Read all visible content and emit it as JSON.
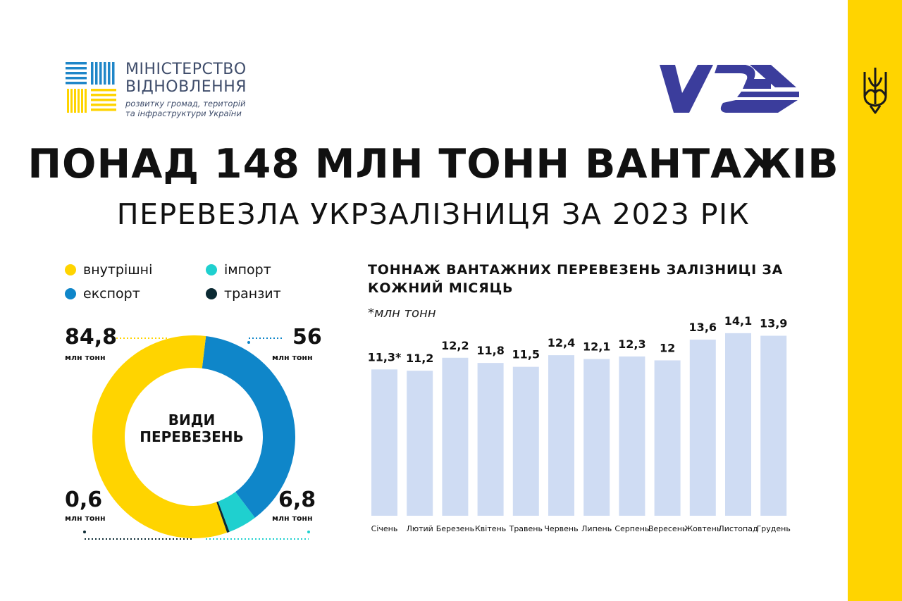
{
  "header": {
    "ministry_line1": "МІНІСТЕРСТВО",
    "ministry_line2": "ВІДНОВЛЕННЯ",
    "ministry_sub1": "розвитку громад, територій",
    "ministry_sub2": "та інфраструктури України",
    "title": "ПОНАД 148 МЛН ТОНН ВАНТАЖІВ",
    "subtitle": "ПЕРЕВЕЗЛА УКРЗАЛІЗНИЦЯ ЗА 2023 РІК"
  },
  "icons": {
    "ministry": "ministry-stripes-logo",
    "railway": "uz-logo",
    "emblem": "trident-icon"
  },
  "colors": {
    "domestic": "#ffd400",
    "export": "#0f86c9",
    "import": "#1fd0cf",
    "transit": "#0b2a33",
    "bar": "#cfdcf3",
    "band": "#ffd400",
    "logo_blue": "#3b3d9c"
  },
  "donut": {
    "center_line1": "ВИДИ",
    "center_line2": "ПЕРЕВЕЗЕНЬ",
    "unit": "млн тонн",
    "legend": [
      {
        "key": "domestic",
        "label": "внутрішні"
      },
      {
        "key": "import",
        "label": "імпорт"
      },
      {
        "key": "export",
        "label": "експорт"
      },
      {
        "key": "transit",
        "label": "транзит"
      }
    ],
    "values": {
      "domestic": "84,8",
      "export": "56",
      "import": "6,8",
      "transit": "0,6"
    }
  },
  "chart_data": [
    {
      "type": "pie",
      "title": "ВИДИ ПЕРЕВЕЗЕНЬ",
      "unit": "млн тонн",
      "slices": [
        {
          "name": "внутрішні",
          "value": 84.8,
          "label": "84,8",
          "color": "#ffd400"
        },
        {
          "name": "експорт",
          "value": 56,
          "label": "56",
          "color": "#0f86c9"
        },
        {
          "name": "імпорт",
          "value": 6.8,
          "label": "6,8",
          "color": "#1fd0cf"
        },
        {
          "name": "транзит",
          "value": 0.6,
          "label": "0,6",
          "color": "#0b2a33"
        }
      ]
    },
    {
      "type": "bar",
      "title": "ТОННАЖ ВАНТАЖНИХ ПЕРЕВЕЗЕНЬ ЗАЛІЗНИЦІ ЗА КОЖНИЙ МІСЯЦЬ",
      "unit": "*млн тонн",
      "categories": [
        "Січень",
        "Лютий",
        "Березень",
        "Квітень",
        "Травень",
        "Червень",
        "Липень",
        "Серпень",
        "Вересень",
        "Жовтень",
        "Листопад",
        "Грудень"
      ],
      "values": [
        11.3,
        11.2,
        12.2,
        11.8,
        11.5,
        12.4,
        12.1,
        12.3,
        12,
        13.6,
        14.1,
        13.9
      ],
      "value_labels": [
        "11,3*",
        "11,2",
        "12,2",
        "11,8",
        "11,5",
        "12,4",
        "12,1",
        "12,3",
        "12",
        "13,6",
        "14,1",
        "13,9"
      ],
      "ylim": [
        0,
        14.8
      ],
      "grid": false,
      "color": "#cfdcf3"
    }
  ]
}
